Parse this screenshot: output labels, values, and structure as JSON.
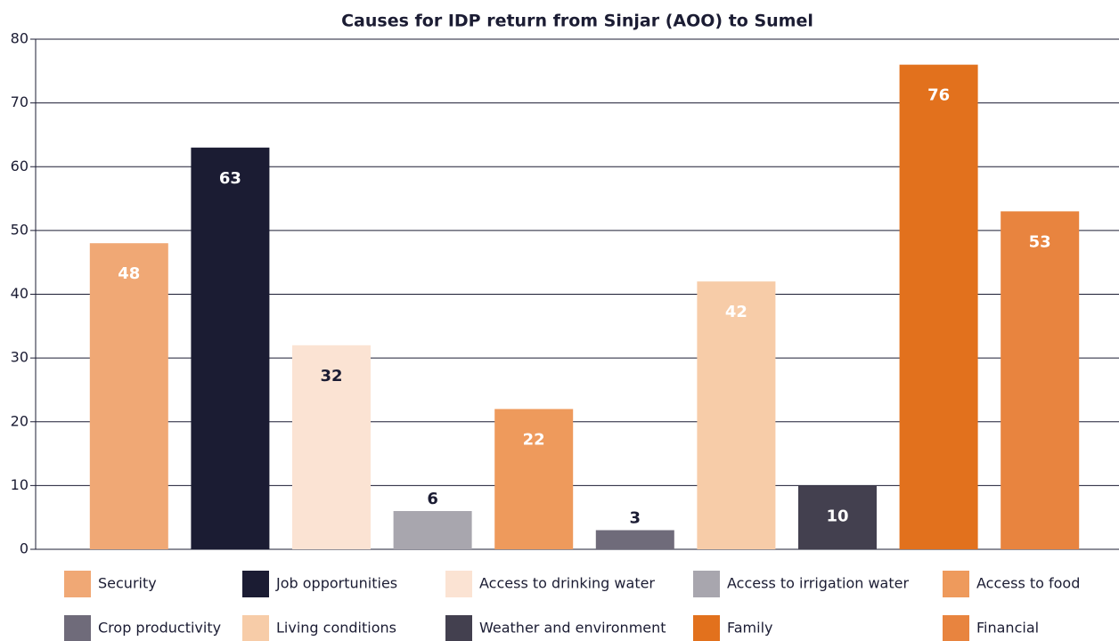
{
  "chart_data": {
    "type": "bar",
    "title": "Causes for IDP return from Sinjar (AOO) to Sumel",
    "categories": [
      "Security",
      "Job opportunities",
      "Access to drinking water",
      "Access to irrigation water",
      "Access to food",
      "Crop productivity",
      "Living conditions",
      "Weather and environment",
      "Family",
      "Financial"
    ],
    "values": [
      48,
      63,
      32,
      6,
      22,
      3,
      42,
      10,
      76,
      53
    ],
    "colors": [
      "#f0a875",
      "#1b1c33",
      "#fbe3d3",
      "#a8a6ae",
      "#ee9a5c",
      "#6f6b7a",
      "#f7cca8",
      "#43404f",
      "#e2711d",
      "#e8843f"
    ],
    "value_label_colors": [
      "#ffffff",
      "#ffffff",
      "#1b1c33",
      "#1b1c33",
      "#ffffff",
      "#1b1c33",
      "#ffffff",
      "#ffffff",
      "#ffffff",
      "#ffffff"
    ],
    "ylim": [
      0,
      80
    ],
    "yticks": [
      0,
      10,
      20,
      30,
      40,
      50,
      60,
      70,
      80
    ],
    "grid": true
  }
}
